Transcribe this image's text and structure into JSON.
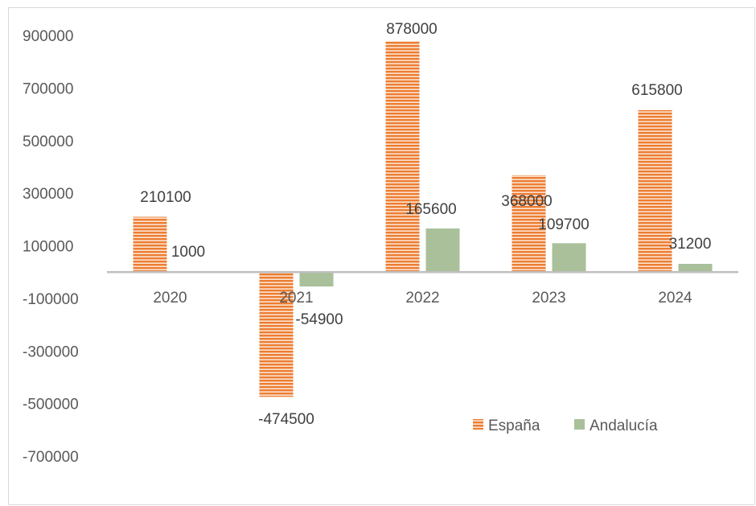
{
  "chart_data": {
    "type": "bar",
    "title": "",
    "xlabel": "",
    "ylabel": "",
    "categories": [
      "2020",
      "2021",
      "2022",
      "2023",
      "2024"
    ],
    "series": [
      {
        "name": "España",
        "values": [
          210100,
          -474500,
          878000,
          368000,
          615800
        ],
        "color": "#ed7d31"
      },
      {
        "name": "Andalucía",
        "values": [
          1000,
          -54900,
          165600,
          109700,
          31200
        ],
        "color": "#a9c09a"
      }
    ],
    "ylim": [
      -700000,
      900000
    ],
    "yticks": [
      900000,
      700000,
      500000,
      300000,
      100000,
      -100000,
      -300000,
      -500000,
      -700000
    ],
    "ytick_labels": [
      "900000",
      "700000",
      "500000",
      "300000",
      "100000",
      "-100000",
      "-300000",
      "-500000",
      "-700000"
    ],
    "data_labels": {
      "España": [
        "210100",
        "-474500",
        "878000",
        "368000",
        "615800"
      ],
      "Andalucía": [
        "1000",
        "-54900",
        "165600",
        "109700",
        "31200"
      ]
    },
    "grid": false,
    "legend_position": "bottom-right",
    "axis_line_color": "#bfbfbf"
  }
}
